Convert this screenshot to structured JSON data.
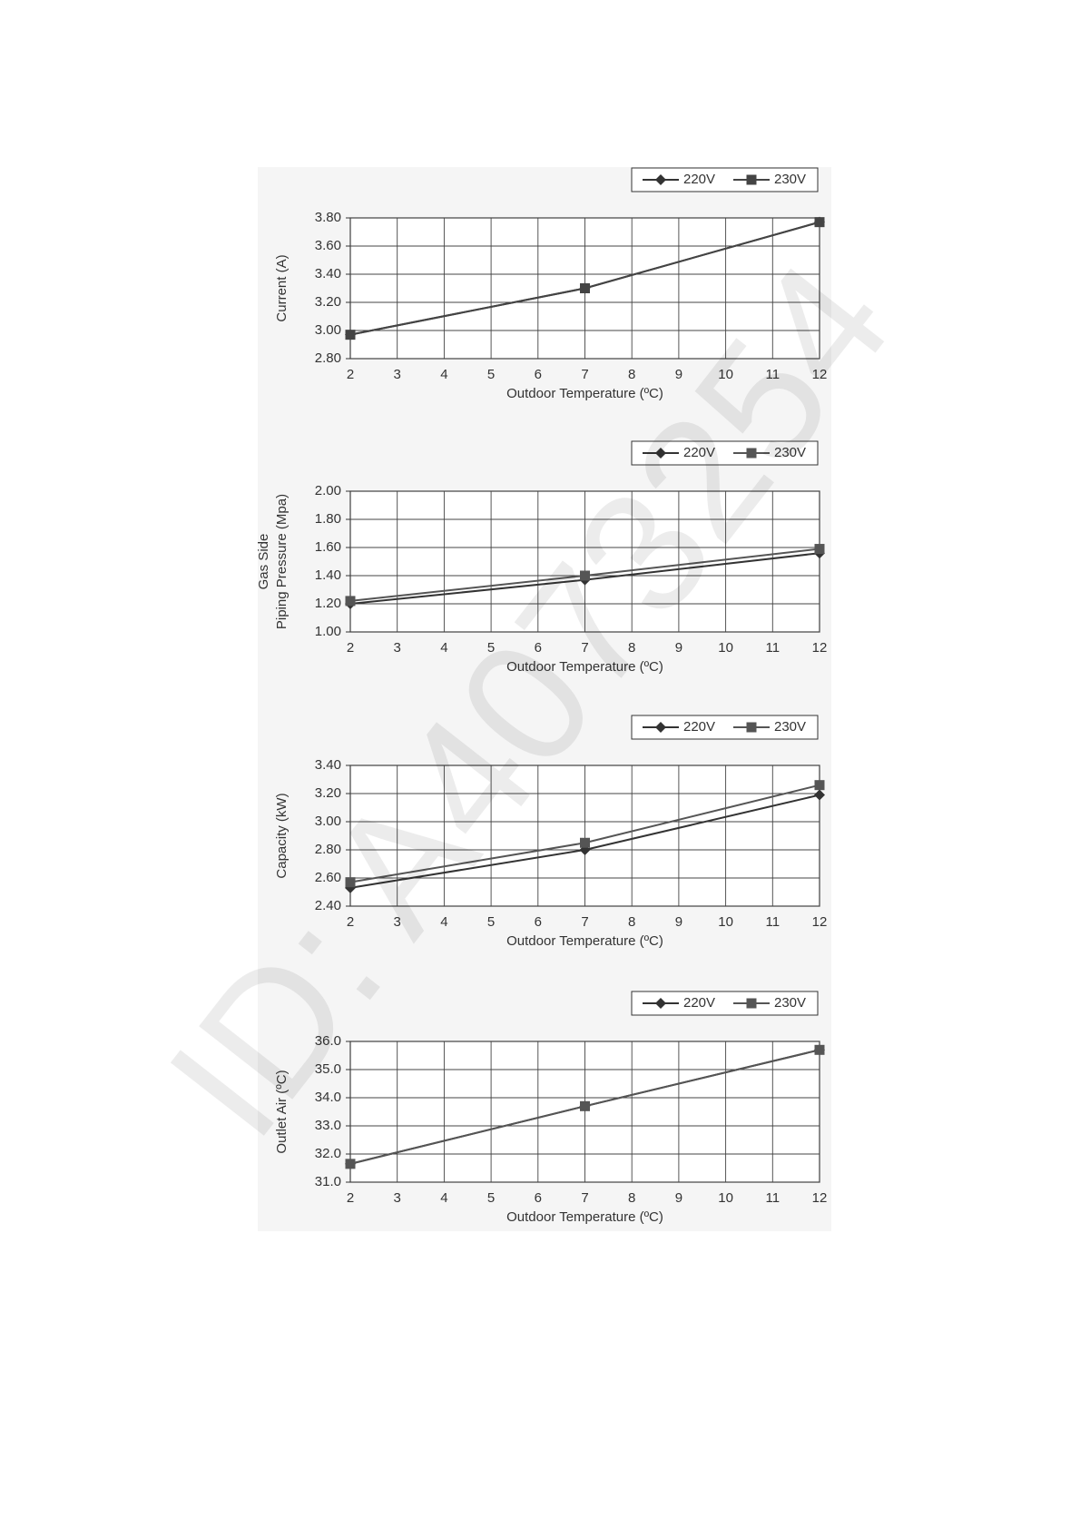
{
  "watermark": "ID: A4073254",
  "chart_data": [
    {
      "type": "line",
      "ylabel": [
        "Current (A)"
      ],
      "xlabel": "Outdoor Temperature (ºC)",
      "x": [
        2,
        7,
        12
      ],
      "xlim": [
        2,
        12
      ],
      "xticks": [
        2,
        3,
        4,
        5,
        6,
        7,
        8,
        9,
        10,
        11,
        12
      ],
      "ylim": [
        2.8,
        3.8
      ],
      "yticks": [
        {
          "value": 2.8,
          "label": "2.80"
        },
        {
          "value": 3.0,
          "label": "3.00"
        },
        {
          "value": 3.2,
          "label": "3.20"
        },
        {
          "value": 3.4,
          "label": "3.40"
        },
        {
          "value": 3.6,
          "label": "3.60"
        },
        {
          "value": 3.8,
          "label": "3.80"
        }
      ],
      "grid": true,
      "series": [
        {
          "name": "220V",
          "color": "#333333",
          "marker": "diamond",
          "values": [
            2.97,
            3.3,
            3.77
          ]
        },
        {
          "name": "230V",
          "color": "#444444",
          "marker": "square",
          "values": [
            2.97,
            3.3,
            3.77
          ]
        }
      ]
    },
    {
      "type": "line",
      "ylabel": [
        "Gas Side",
        "Piping Pressure (Mpa)"
      ],
      "xlabel": "Outdoor Temperature (ºC)",
      "x": [
        2,
        7,
        12
      ],
      "xlim": [
        2,
        12
      ],
      "xticks": [
        2,
        3,
        4,
        5,
        6,
        7,
        8,
        9,
        10,
        11,
        12
      ],
      "ylim": [
        1.0,
        2.0
      ],
      "yticks": [
        {
          "value": 1.0,
          "label": "1.00"
        },
        {
          "value": 1.2,
          "label": "1.20"
        },
        {
          "value": 1.4,
          "label": "1.40"
        },
        {
          "value": 1.6,
          "label": "1.60"
        },
        {
          "value": 1.8,
          "label": "1.80"
        },
        {
          "value": 2.0,
          "label": "2.00"
        }
      ],
      "grid": true,
      "series": [
        {
          "name": "220V",
          "color": "#333333",
          "marker": "diamond",
          "values": [
            1.2,
            1.37,
            1.56
          ]
        },
        {
          "name": "230V",
          "color": "#555555",
          "marker": "square",
          "values": [
            1.22,
            1.4,
            1.59
          ]
        }
      ]
    },
    {
      "type": "line",
      "ylabel": [
        "Capacity (kW)"
      ],
      "xlabel": "Outdoor Temperature (ºC)",
      "x": [
        2,
        7,
        12
      ],
      "xlim": [
        2,
        12
      ],
      "xticks": [
        2,
        3,
        4,
        5,
        6,
        7,
        8,
        9,
        10,
        11,
        12
      ],
      "ylim": [
        2.4,
        3.4
      ],
      "yticks": [
        {
          "value": 2.4,
          "label": "2.40"
        },
        {
          "value": 2.6,
          "label": "2.60"
        },
        {
          "value": 2.8,
          "label": "2.80"
        },
        {
          "value": 3.0,
          "label": "3.00"
        },
        {
          "value": 3.2,
          "label": "3.20"
        },
        {
          "value": 3.4,
          "label": "3.40"
        }
      ],
      "grid": true,
      "series": [
        {
          "name": "220V",
          "color": "#333333",
          "marker": "diamond",
          "values": [
            2.53,
            2.8,
            3.19
          ]
        },
        {
          "name": "230V",
          "color": "#555555",
          "marker": "square",
          "values": [
            2.57,
            2.85,
            3.26
          ]
        }
      ]
    },
    {
      "type": "line",
      "ylabel": [
        "Outlet Air (ºC)"
      ],
      "xlabel": "Outdoor Temperature (ºC)",
      "x": [
        2,
        7,
        12
      ],
      "xlim": [
        2,
        12
      ],
      "xticks": [
        2,
        3,
        4,
        5,
        6,
        7,
        8,
        9,
        10,
        11,
        12
      ],
      "ylim": [
        31,
        36
      ],
      "yticks": [
        {
          "value": 31,
          "label": "31.0"
        },
        {
          "value": 32,
          "label": "32.0"
        },
        {
          "value": 33,
          "label": "33.0"
        },
        {
          "value": 34,
          "label": "34.0"
        },
        {
          "value": 35,
          "label": "35.0"
        },
        {
          "value": 36,
          "label": "36.0"
        }
      ],
      "grid": true,
      "series": [
        {
          "name": "220V",
          "color": "#333333",
          "marker": "diamond",
          "values": [
            31.65,
            33.7,
            35.7
          ]
        },
        {
          "name": "230V",
          "color": "#555555",
          "marker": "square",
          "values": [
            31.65,
            33.7,
            35.7
          ]
        }
      ]
    }
  ]
}
